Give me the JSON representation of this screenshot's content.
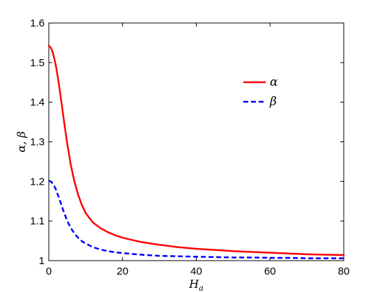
{
  "chart_data": {
    "type": "line",
    "title": "",
    "xlabel": "H_a",
    "xlabel_main": "H",
    "xlabel_sub": "a",
    "ylabel": "α, β",
    "xlim": [
      0,
      80
    ],
    "ylim": [
      1,
      1.6
    ],
    "xticks": [
      "0",
      "20",
      "40",
      "60",
      "80"
    ],
    "yticks": [
      "1",
      "1.1",
      "1.2",
      "1.3",
      "1.4",
      "1.5",
      "1.6"
    ],
    "grid": false,
    "legend_position": "upper-right",
    "series": [
      {
        "name": "α",
        "color": "#ff0000",
        "style": "solid",
        "x": [
          0,
          0.5,
          1,
          1.5,
          2,
          2.5,
          3,
          3.5,
          4,
          5,
          6,
          7,
          8,
          9,
          10,
          12,
          14,
          16,
          18,
          20,
          25,
          30,
          35,
          40,
          45,
          50,
          55,
          60,
          65,
          70,
          75,
          80
        ],
        "y": [
          1.543,
          1.538,
          1.528,
          1.51,
          1.488,
          1.46,
          1.428,
          1.395,
          1.36,
          1.295,
          1.24,
          1.198,
          1.165,
          1.14,
          1.12,
          1.096,
          1.082,
          1.072,
          1.064,
          1.058,
          1.047,
          1.04,
          1.034,
          1.03,
          1.027,
          1.024,
          1.022,
          1.02,
          1.018,
          1.016,
          1.015,
          1.014
        ]
      },
      {
        "name": "β",
        "color": "#0000ff",
        "style": "dashed",
        "x": [
          0,
          0.5,
          1,
          1.5,
          2,
          2.5,
          3,
          3.5,
          4,
          5,
          6,
          7,
          8,
          9,
          10,
          12,
          14,
          16,
          18,
          20,
          25,
          30,
          35,
          40,
          45,
          50,
          55,
          60,
          65,
          70,
          75,
          80
        ],
        "y": [
          1.202,
          1.2,
          1.195,
          1.188,
          1.178,
          1.165,
          1.152,
          1.138,
          1.125,
          1.1,
          1.082,
          1.068,
          1.057,
          1.049,
          1.043,
          1.034,
          1.028,
          1.024,
          1.021,
          1.019,
          1.015,
          1.012,
          1.011,
          1.01,
          1.009,
          1.008,
          1.008,
          1.007,
          1.007,
          1.006,
          1.006,
          1.006
        ]
      }
    ]
  }
}
